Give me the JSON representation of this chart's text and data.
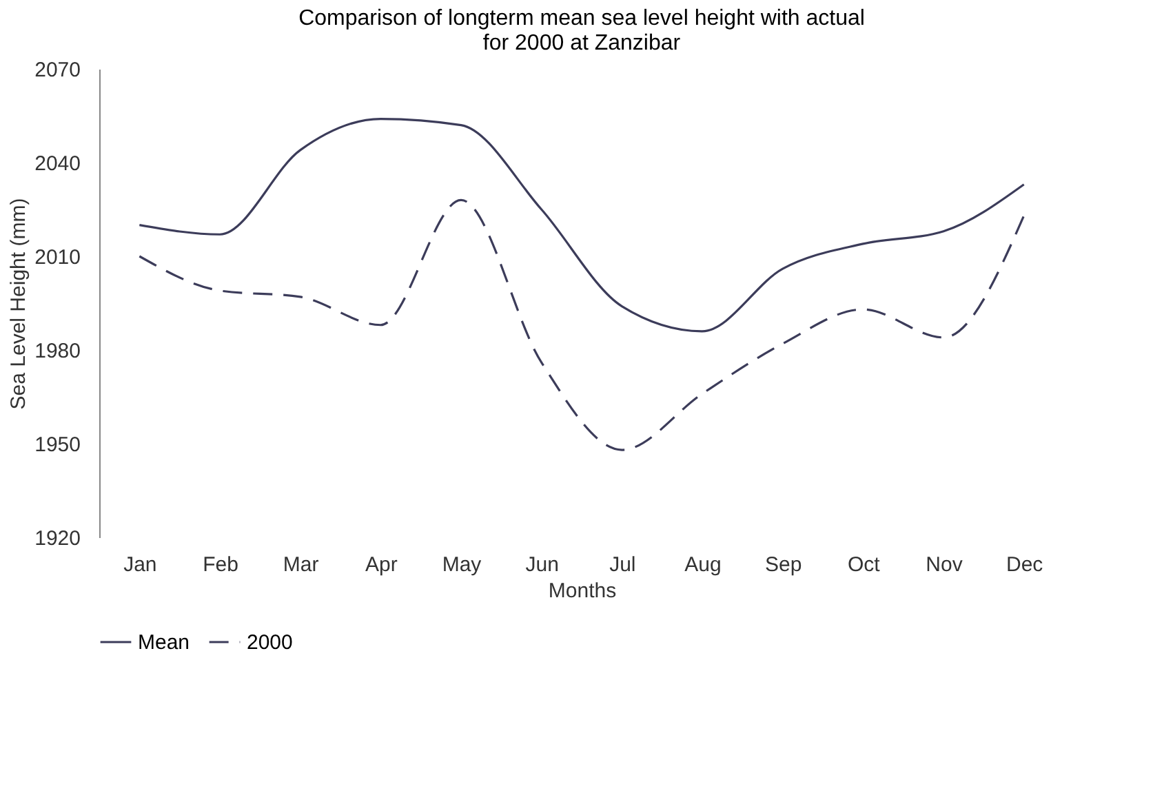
{
  "chart_data": {
    "type": "line",
    "title": [
      "Comparison of  longterm mean sea level  height with actual",
      "for 2000 at Zanzibar"
    ],
    "xlabel": "Months",
    "ylabel": "Sea Level Height (mm)",
    "categories": [
      "Jan",
      "Feb",
      "Mar",
      "Apr",
      "May",
      "Jun",
      "Jul",
      "Aug",
      "Sep",
      "Oct",
      "Nov",
      "Dec"
    ],
    "series": [
      {
        "name": "Mean",
        "color": "#3c3c5a",
        "line_style": "solid",
        "values": [
          2020,
          2017,
          2044,
          2054,
          2052,
          2025,
          1994,
          1986,
          2006,
          2014,
          2018,
          2033
        ]
      },
      {
        "name": "2000",
        "color": "#3c3c5a",
        "line_style": "dashed",
        "values": [
          2010,
          1999,
          1997,
          1988,
          2028,
          1976,
          1948,
          1966,
          1982,
          1993,
          1984,
          2023
        ]
      }
    ],
    "ylim": [
      1920,
      2070
    ],
    "yticks": [
      1920,
      1950,
      1980,
      2010,
      2040,
      2070
    ],
    "grid": false,
    "legend": "bottom"
  }
}
